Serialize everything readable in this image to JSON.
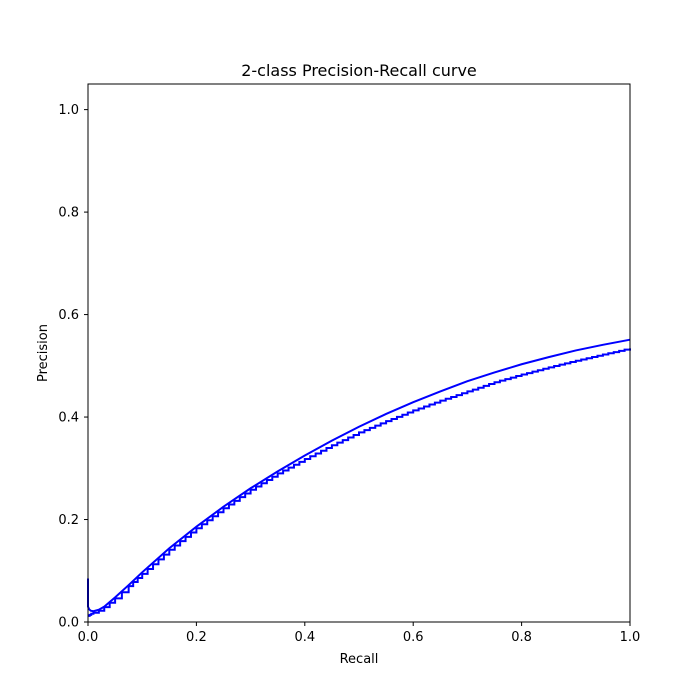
{
  "chart_data": {
    "type": "line",
    "title": "2-class Precision-Recall curve",
    "xlabel": "Recall",
    "ylabel": "Precision",
    "xlim": [
      0.0,
      1.0
    ],
    "ylim": [
      0.0,
      1.05
    ],
    "xticks": [
      "0.0",
      "0.2",
      "0.4",
      "0.6",
      "0.8",
      "1.0"
    ],
    "yticks": [
      "0.0",
      "0.2",
      "0.4",
      "0.6",
      "0.8",
      "1.0"
    ],
    "grid": false,
    "line_color": "#0000ff",
    "line_color_dark": "#00008b",
    "series": [
      {
        "style": "smooth",
        "x": [
          0.0,
          0.0,
          0.002,
          0.005,
          0.01,
          0.02,
          0.03,
          0.05,
          0.075,
          0.1,
          0.15,
          0.2,
          0.25,
          0.3,
          0.35,
          0.4,
          0.45,
          0.5,
          0.55,
          0.6,
          0.65,
          0.7,
          0.75,
          0.8,
          0.85,
          0.9,
          0.95,
          1.0
        ],
        "y": [
          0.085,
          0.03,
          0.025,
          0.022,
          0.021,
          0.024,
          0.03,
          0.048,
          0.072,
          0.097,
          0.144,
          0.186,
          0.225,
          0.261,
          0.294,
          0.325,
          0.354,
          0.381,
          0.406,
          0.429,
          0.45,
          0.47,
          0.487,
          0.503,
          0.517,
          0.53,
          0.541,
          0.551
        ]
      },
      {
        "style": "step",
        "x": [
          0.0,
          0.003,
          0.006,
          0.01,
          0.02,
          0.03,
          0.05,
          0.075,
          0.1,
          0.15,
          0.2,
          0.25,
          0.3,
          0.35,
          0.4,
          0.45,
          0.5,
          0.55,
          0.6,
          0.65,
          0.7,
          0.75,
          0.8,
          0.85,
          0.9,
          0.95,
          1.0
        ],
        "y": [
          0.012,
          0.014,
          0.016,
          0.018,
          0.022,
          0.029,
          0.046,
          0.07,
          0.094,
          0.141,
          0.183,
          0.222,
          0.258,
          0.29,
          0.318,
          0.345,
          0.37,
          0.392,
          0.413,
          0.432,
          0.45,
          0.468,
          0.483,
          0.497,
          0.51,
          0.522,
          0.534
        ]
      }
    ]
  }
}
